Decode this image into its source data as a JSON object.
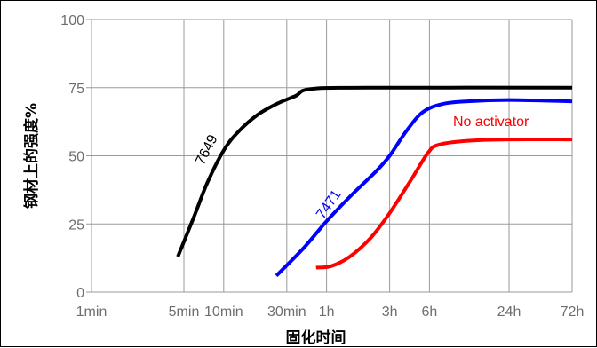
{
  "chart_data": {
    "type": "line",
    "title": "",
    "xlabel": "固化时间",
    "ylabel": "钢材上的强度%",
    "ylim": [
      0,
      100
    ],
    "y_ticks": [
      0,
      25,
      50,
      75,
      100
    ],
    "x_scale": "log",
    "x_unit": "min",
    "x_ticks": [
      {
        "label": "1min",
        "value": 1
      },
      {
        "label": "5min",
        "value": 5
      },
      {
        "label": "10min",
        "value": 10
      },
      {
        "label": "30min",
        "value": 30
      },
      {
        "label": "1h",
        "value": 60
      },
      {
        "label": "3h",
        "value": 180
      },
      {
        "label": "6h",
        "value": 360
      },
      {
        "label": "24h",
        "value": 1440
      },
      {
        "label": "72h",
        "value": 4320
      }
    ],
    "grid": true,
    "series": [
      {
        "name": "7649",
        "color": "#000000",
        "points": [
          [
            4.5,
            13
          ],
          [
            6,
            28
          ],
          [
            7.5,
            40
          ],
          [
            10,
            52
          ],
          [
            13,
            59
          ],
          [
            18,
            65
          ],
          [
            25,
            69
          ],
          [
            35,
            72
          ],
          [
            45,
            74.5
          ],
          [
            120,
            75
          ],
          [
            4320,
            75
          ]
        ]
      },
      {
        "name": "7471",
        "color": "#0000ff",
        "points": [
          [
            25,
            6
          ],
          [
            40,
            16
          ],
          [
            60,
            26
          ],
          [
            90,
            35
          ],
          [
            140,
            44
          ],
          [
            180,
            50
          ],
          [
            240,
            59
          ],
          [
            320,
            66
          ],
          [
            450,
            69
          ],
          [
            700,
            70
          ],
          [
            1440,
            70.5
          ],
          [
            4320,
            70
          ]
        ]
      },
      {
        "name": "No activator",
        "color": "#ff0000",
        "points": [
          [
            50,
            9
          ],
          [
            65,
            9.5
          ],
          [
            90,
            13
          ],
          [
            130,
            20
          ],
          [
            180,
            29
          ],
          [
            260,
            41
          ],
          [
            350,
            51
          ],
          [
            420,
            54
          ],
          [
            700,
            55.5
          ],
          [
            1440,
            56
          ],
          [
            4320,
            56
          ]
        ]
      }
    ]
  }
}
